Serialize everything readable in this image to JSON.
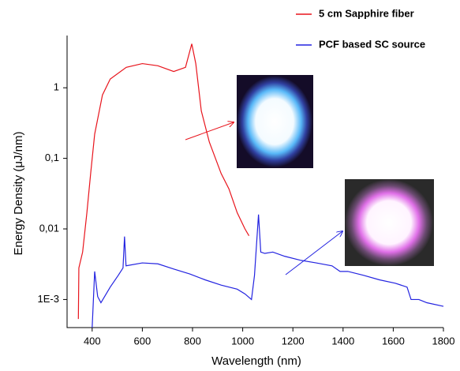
{
  "chart_data": {
    "type": "line",
    "x_label": "Wavelength (nm)",
    "y_label": "Energy Density (μJ/nm)",
    "xlim": [
      300,
      1800
    ],
    "xticks": [
      400,
      600,
      800,
      1000,
      1200,
      1400,
      1600,
      1800
    ],
    "ylim": [
      0.0004,
      5.5
    ],
    "yticks": [
      {
        "value": 0.001,
        "label": "1E-3"
      },
      {
        "value": 0.01,
        "label": "0,01"
      },
      {
        "value": 0.1,
        "label": "0,1"
      },
      1
    ],
    "log_y": true,
    "legend": "top-right",
    "series": [
      {
        "name": "5 cm Sapphire fiber",
        "color": "#e8141c",
        "x": [
          345,
          347,
          362,
          379,
          394,
          410,
          441,
          472,
          536,
          600,
          662,
          725,
          772,
          797,
          813,
          835,
          867,
          914,
          945,
          978,
          1009,
          1025
        ],
        "values": [
          0.00053,
          0.0028,
          0.0047,
          0.017,
          0.061,
          0.22,
          0.79,
          1.33,
          1.95,
          2.2,
          2.05,
          1.7,
          1.95,
          4.2,
          2.2,
          0.47,
          0.17,
          0.061,
          0.037,
          0.017,
          0.01,
          0.008
        ]
      },
      {
        "name": "PCF based SC source",
        "color": "#2323e0",
        "x": [
          400,
          410,
          422,
          435,
          472,
          504,
          523,
          529,
          535,
          600,
          662,
          725,
          789,
          850,
          914,
          978,
          1009,
          1035,
          1047,
          1063,
          1072,
          1088,
          1120,
          1167,
          1230,
          1293,
          1356,
          1388,
          1419,
          1482,
          1545,
          1608,
          1655,
          1671,
          1702,
          1734,
          1800
        ],
        "values": [
          0.0004,
          0.0025,
          0.0011,
          0.0009,
          0.0015,
          0.0022,
          0.0028,
          0.0078,
          0.003,
          0.0033,
          0.0032,
          0.0027,
          0.0023,
          0.0019,
          0.0016,
          0.0014,
          0.0012,
          0.001,
          0.0022,
          0.016,
          0.0047,
          0.0045,
          0.0047,
          0.0041,
          0.0036,
          0.0033,
          0.003,
          0.0025,
          0.0025,
          0.0022,
          0.0019,
          0.0017,
          0.0015,
          0.001,
          0.001,
          0.0009,
          0.0008
        ]
      }
    ]
  }
}
